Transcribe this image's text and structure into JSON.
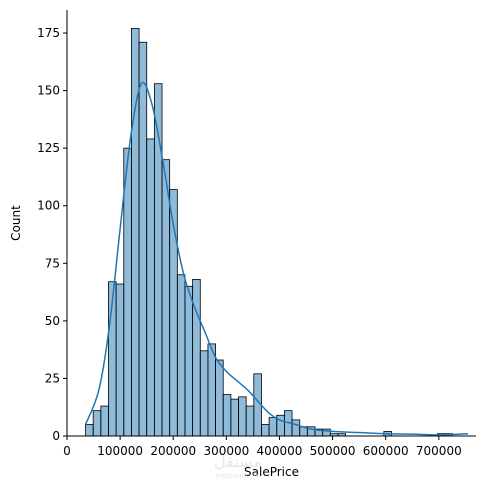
{
  "chart_data": {
    "type": "bar",
    "subtype": "histogram-with-kde",
    "xlabel": "SalePrice",
    "ylabel": "Count",
    "xlim": [
      0,
      770000
    ],
    "ylim": [
      0,
      185
    ],
    "x_ticks": [
      0,
      100000,
      200000,
      300000,
      400000,
      500000,
      600000,
      700000
    ],
    "x_tick_labels": [
      "0",
      "100000",
      "200000",
      "300000",
      "400000",
      "500000",
      "600000",
      "700000"
    ],
    "y_ticks": [
      0,
      25,
      50,
      75,
      100,
      125,
      150,
      175
    ],
    "y_tick_labels": [
      "0",
      "25",
      "50",
      "75",
      "100",
      "125",
      "150",
      "175"
    ],
    "bin_start": 34900,
    "bin_width": 14400,
    "counts": [
      5,
      11,
      13,
      67,
      66,
      125,
      177,
      171,
      129,
      153,
      120,
      107,
      70,
      65,
      68,
      37,
      40,
      33,
      18,
      16,
      17,
      13,
      27,
      5,
      8,
      9,
      11,
      7,
      4,
      4,
      3,
      3,
      1,
      1,
      0,
      0,
      0,
      0,
      0,
      2,
      0,
      0,
      0,
      0,
      0,
      0,
      1,
      1,
      0,
      0,
      0,
      0,
      0,
      0,
      0,
      0,
      0,
      0,
      0,
      2
    ],
    "kde": {
      "x": [
        34900,
        60000,
        80000,
        100000,
        120000,
        140000,
        160000,
        180000,
        200000,
        220000,
        240000,
        260000,
        280000,
        300000,
        320000,
        340000,
        360000,
        380000,
        400000,
        430000,
        460000,
        500000,
        550000,
        600000,
        650000,
        700000,
        755000
      ],
      "y": [
        5,
        20,
        48,
        90,
        130,
        153,
        144,
        120,
        92,
        70,
        56,
        45,
        34,
        28,
        24,
        20,
        15,
        10,
        7,
        5,
        3,
        2,
        1.5,
        1,
        0.8,
        0.5,
        1
      ]
    },
    "colors": {
      "bar_fill": "#1f77b4",
      "bar_fill_opacity": 0.5,
      "bar_edge": "#000000",
      "kde_line": "#1f77b4"
    },
    "grid": false
  },
  "watermark": {
    "main": "مستقل",
    "sub": "mostaql.com"
  }
}
